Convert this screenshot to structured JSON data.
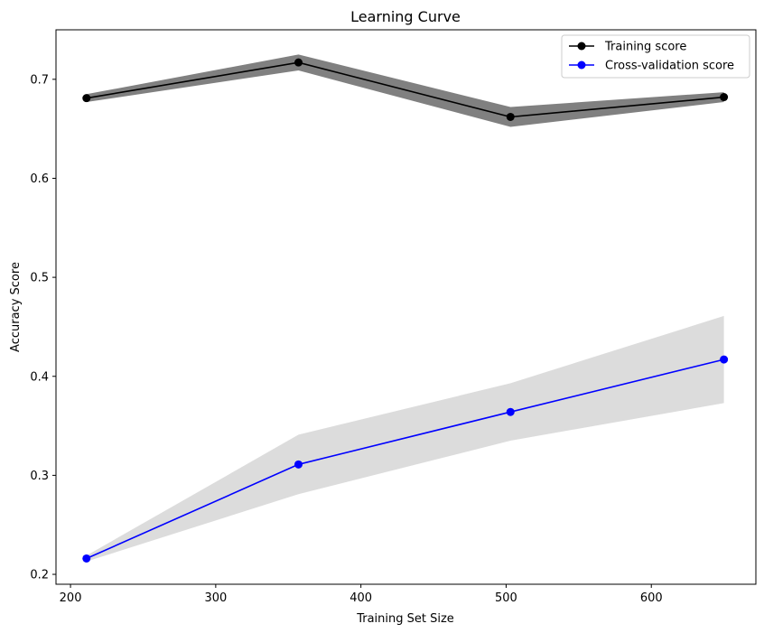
{
  "chart_data": {
    "type": "line",
    "title": "Learning Curve",
    "xlabel": "Training Set Size",
    "ylabel": "Accuracy Score",
    "xlim": [
      190,
      672
    ],
    "ylim": [
      0.19,
      0.75
    ],
    "xticks": [
      200,
      300,
      400,
      500,
      600
    ],
    "yticks": [
      0.2,
      0.3,
      0.4,
      0.5,
      0.6,
      0.7
    ],
    "grid": false,
    "legend_position": "top-right",
    "x": [
      211,
      357,
      503,
      650
    ],
    "series": [
      {
        "name": "Training score",
        "color": "#000000",
        "band_color": "#808080",
        "values": [
          0.681,
          0.717,
          0.662,
          0.682
        ],
        "band_upper": [
          0.685,
          0.725,
          0.672,
          0.687
        ],
        "band_lower": [
          0.677,
          0.709,
          0.652,
          0.677
        ]
      },
      {
        "name": "Cross-validation score",
        "color": "#0000ff",
        "band_color": "#dcdcdc",
        "values": [
          0.216,
          0.311,
          0.364,
          0.417
        ],
        "band_upper": [
          0.219,
          0.341,
          0.393,
          0.461
        ],
        "band_lower": [
          0.213,
          0.281,
          0.335,
          0.373
        ]
      }
    ]
  }
}
